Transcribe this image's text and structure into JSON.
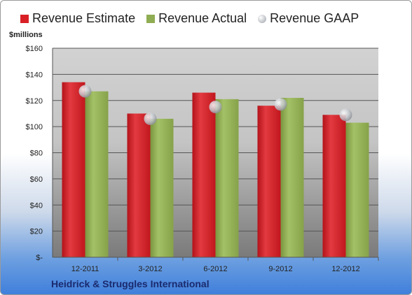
{
  "chart_data": {
    "type": "bar",
    "ylabel": "$millions",
    "ylim": [
      0,
      160
    ],
    "yticks": [
      "$-",
      "$20",
      "$40",
      "$60",
      "$80",
      "$100",
      "$120",
      "$140",
      "$160"
    ],
    "categories": [
      "12-2011",
      "3-2012",
      "6-2012",
      "9-2012",
      "12-2012"
    ],
    "series": [
      {
        "name": "Revenue Estimate",
        "kind": "bar",
        "color": "#d91f26",
        "values": [
          134,
          110,
          126,
          116,
          109
        ]
      },
      {
        "name": "Revenue Actual",
        "kind": "bar",
        "color": "#8fad52",
        "values": [
          127,
          106,
          121,
          122,
          103
        ]
      },
      {
        "name": "Revenue GAAP",
        "kind": "marker",
        "color": "#c8ccd2",
        "values": [
          127,
          106,
          115,
          117,
          109
        ]
      }
    ],
    "grid": true,
    "legend": "top"
  },
  "footer": {
    "company": "Heidrick & Struggles International"
  }
}
